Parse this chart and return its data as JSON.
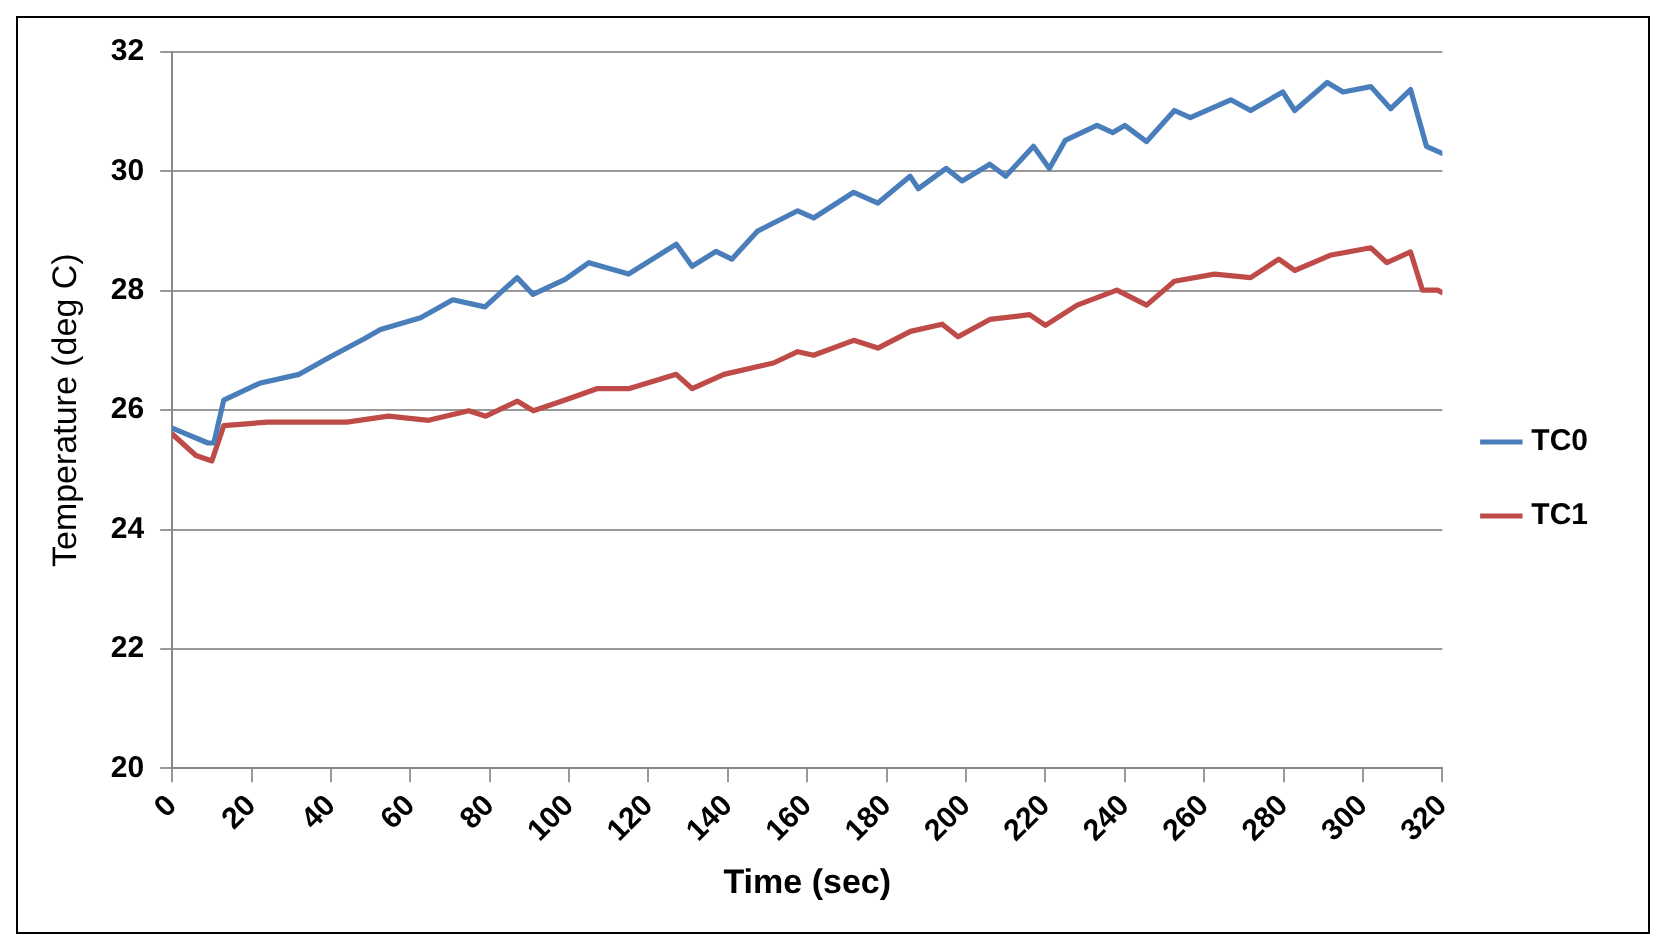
{
  "chart_data": {
    "type": "line",
    "xlabel": "Time (sec)",
    "ylabel": "Temperature (deg C)",
    "xlim": [
      0,
      320
    ],
    "xticks": [
      0,
      20,
      40,
      60,
      80,
      100,
      120,
      140,
      160,
      180,
      200,
      220,
      240,
      260,
      280,
      300,
      320
    ],
    "ylim": [
      20,
      32
    ],
    "yticks": [
      20,
      22,
      24,
      26,
      28,
      30,
      32
    ],
    "grid": "y",
    "legend": "right",
    "marker": "none",
    "line_style": "solid",
    "series": [
      {
        "name": "TC0",
        "color": "#4a7ebb",
        "x": [
          0,
          9,
          10.5,
          13,
          22,
          32,
          40,
          48.5,
          52.5,
          62.6,
          70.7,
          78.8,
          86.9,
          90.9,
          99,
          105,
          115,
          127,
          131,
          137,
          141,
          147.5,
          157.6,
          161.6,
          171.7,
          177.8,
          185.9,
          188,
          195,
          199,
          206,
          210,
          217,
          221,
          225,
          233,
          237,
          240,
          245.5,
          252.5,
          256.5,
          266.7,
          271.7,
          279.8,
          282.8,
          291,
          295,
          302,
          307,
          312,
          316,
          320
        ],
        "values": [
          25.7,
          25.45,
          25.45,
          26.17,
          26.45,
          26.6,
          26.9,
          27.2,
          27.35,
          27.55,
          27.85,
          27.73,
          28.22,
          27.94,
          28.19,
          28.47,
          28.28,
          28.78,
          28.41,
          28.66,
          28.53,
          29.0,
          29.34,
          29.22,
          29.65,
          29.47,
          29.92,
          29.71,
          30.05,
          29.84,
          30.12,
          29.92,
          30.42,
          30.05,
          30.52,
          30.77,
          30.65,
          30.77,
          30.5,
          31.02,
          30.9,
          31.2,
          31.02,
          31.33,
          31.02,
          31.49,
          31.33,
          31.42,
          31.05,
          31.37,
          30.42,
          30.3
        ]
      },
      {
        "name": "TC1",
        "color": "#be4b48",
        "x": [
          0,
          6,
          10,
          13,
          24,
          44,
          54.5,
          64.6,
          74.7,
          79,
          87,
          91,
          99,
          107,
          115,
          127,
          131,
          139,
          151.5,
          157.6,
          161.6,
          171.7,
          177.8,
          186,
          194,
          198,
          206,
          216,
          220,
          228,
          238,
          245.5,
          252.5,
          262.6,
          271.7,
          278.8,
          282.8,
          292,
          302,
          306,
          312,
          315,
          318.8,
          320
        ],
        "values": [
          25.6,
          25.24,
          25.15,
          25.74,
          25.8,
          25.8,
          25.9,
          25.83,
          25.99,
          25.9,
          26.15,
          25.99,
          26.17,
          26.36,
          26.36,
          26.6,
          26.36,
          26.6,
          26.79,
          26.98,
          26.92,
          27.17,
          27.04,
          27.32,
          27.44,
          27.23,
          27.52,
          27.6,
          27.42,
          27.76,
          28.01,
          27.76,
          28.16,
          28.28,
          28.22,
          28.53,
          28.34,
          28.6,
          28.72,
          28.47,
          28.65,
          28.01,
          28.01,
          27.97
        ]
      }
    ]
  }
}
